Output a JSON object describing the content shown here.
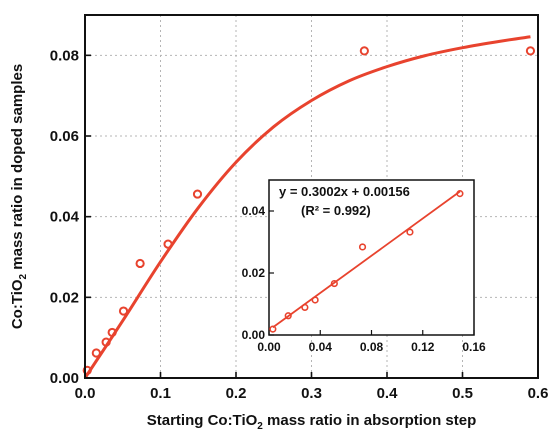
{
  "chart_data": [
    {
      "type": "scatter",
      "xlabel_parts": [
        "Starting Co:TiO",
        "2",
        " mass ratio in absorption step"
      ],
      "ylabel_parts": [
        "Co:TiO",
        "2",
        " mass ratio in doped samples"
      ],
      "xlim": [
        0,
        0.6
      ],
      "ylim": [
        0,
        0.09
      ],
      "xticks": [
        {
          "v": 0.0,
          "label": "0.0"
        },
        {
          "v": 0.1,
          "label": "0.1"
        },
        {
          "v": 0.2,
          "label": "0.2"
        },
        {
          "v": 0.3,
          "label": "0.3"
        },
        {
          "v": 0.4,
          "label": "0.4"
        },
        {
          "v": 0.5,
          "label": "0.5"
        },
        {
          "v": 0.6,
          "label": "0.6"
        }
      ],
      "yticks": [
        {
          "v": 0.0,
          "label": "0.00"
        },
        {
          "v": 0.02,
          "label": "0.02"
        },
        {
          "v": 0.04,
          "label": "0.04"
        },
        {
          "v": 0.06,
          "label": "0.06"
        },
        {
          "v": 0.08,
          "label": "0.08"
        }
      ],
      "grid": true,
      "color": "#e8432e",
      "points": [
        {
          "x": 0.003,
          "y": 0.0019
        },
        {
          "x": 0.015,
          "y": 0.0062
        },
        {
          "x": 0.028,
          "y": 0.0089
        },
        {
          "x": 0.036,
          "y": 0.0113
        },
        {
          "x": 0.051,
          "y": 0.0166
        },
        {
          "x": 0.073,
          "y": 0.0284
        },
        {
          "x": 0.11,
          "y": 0.0332
        },
        {
          "x": 0.149,
          "y": 0.0456
        },
        {
          "x": 0.37,
          "y": 0.0811
        },
        {
          "x": 0.59,
          "y": 0.0811
        }
      ],
      "fit_curve": [
        {
          "x": 0.0,
          "y": 0.0
        },
        {
          "x": 0.05,
          "y": 0.0142
        },
        {
          "x": 0.1,
          "y": 0.0288
        },
        {
          "x": 0.15,
          "y": 0.0422
        },
        {
          "x": 0.2,
          "y": 0.0535
        },
        {
          "x": 0.25,
          "y": 0.0623
        },
        {
          "x": 0.3,
          "y": 0.0688
        },
        {
          "x": 0.35,
          "y": 0.0737
        },
        {
          "x": 0.4,
          "y": 0.0772
        },
        {
          "x": 0.45,
          "y": 0.0799
        },
        {
          "x": 0.5,
          "y": 0.0819
        },
        {
          "x": 0.55,
          "y": 0.0835
        },
        {
          "x": 0.59,
          "y": 0.0846
        }
      ]
    },
    {
      "type": "scatter",
      "xlim": [
        0,
        0.16
      ],
      "ylim": [
        0,
        0.05
      ],
      "xticks": [
        {
          "v": 0.0,
          "label": "0.00"
        },
        {
          "v": 0.04,
          "label": "0.04"
        },
        {
          "v": 0.08,
          "label": "0.08"
        },
        {
          "v": 0.12,
          "label": "0.12"
        },
        {
          "v": 0.16,
          "label": "0.16"
        }
      ],
      "yticks": [
        {
          "v": 0.0,
          "label": "0.00"
        },
        {
          "v": 0.02,
          "label": "0.02"
        },
        {
          "v": 0.04,
          "label": "0.04"
        }
      ],
      "color": "#e8432e",
      "equation": "y = 0.3002x + 0.00156",
      "r_squared": "(R² = 0.992)",
      "fit_line": {
        "slope": 0.3002,
        "intercept": 0.00156,
        "x_range": [
          0.003,
          0.149
        ]
      },
      "points": [
        {
          "x": 0.003,
          "y": 0.0019
        },
        {
          "x": 0.015,
          "y": 0.0062
        },
        {
          "x": 0.028,
          "y": 0.0089
        },
        {
          "x": 0.036,
          "y": 0.0113
        },
        {
          "x": 0.051,
          "y": 0.0166
        },
        {
          "x": 0.073,
          "y": 0.0284
        },
        {
          "x": 0.11,
          "y": 0.0332
        },
        {
          "x": 0.149,
          "y": 0.0456
        }
      ]
    }
  ]
}
